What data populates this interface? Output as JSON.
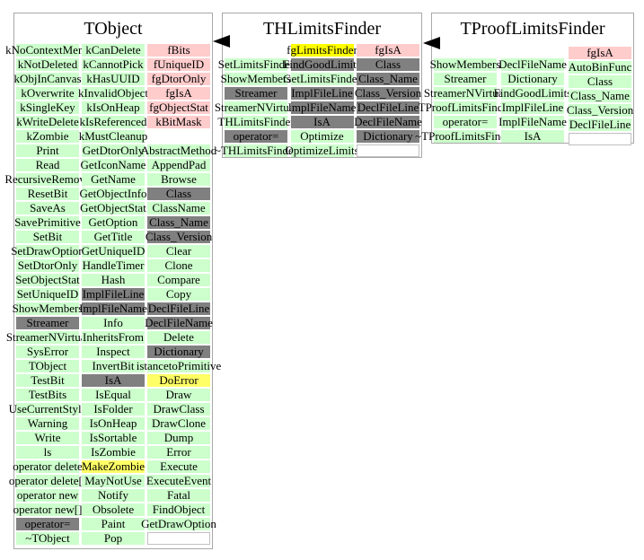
{
  "colors": {
    "green": "#ccffcc",
    "gray": "#808080",
    "pink": "#ffcccc",
    "yellow": "#ffff00",
    "lightyellow": "#ffff66"
  },
  "arrows": [
    {
      "from": "THLimitsFinder",
      "to": "TObject",
      "direction": "left"
    },
    {
      "from": "TProofLimitsFinder",
      "to": "THLimitsFinder",
      "direction": "left"
    }
  ],
  "classes": [
    {
      "title": "TObject",
      "columns": [
        [
          [
            "kNoContextMenu",
            "green"
          ],
          [
            "kNotDeleted",
            "green"
          ],
          [
            "kObjInCanvas",
            "green"
          ],
          [
            "kOverwrite",
            "green"
          ],
          [
            "kSingleKey",
            "green"
          ],
          [
            "kWriteDelete",
            "green"
          ],
          [
            "kZombie",
            "green"
          ],
          [
            "Print",
            "green"
          ],
          [
            "Read",
            "green"
          ],
          [
            "RecursiveRemove",
            "green"
          ],
          [
            "ResetBit",
            "green"
          ],
          [
            "SaveAs",
            "green"
          ],
          [
            "SavePrimitive",
            "green"
          ],
          [
            "SetBit",
            "green"
          ],
          [
            "SetDrawOption",
            "green"
          ],
          [
            "SetDtorOnly",
            "green"
          ],
          [
            "SetObjectStat",
            "green"
          ],
          [
            "SetUniqueID",
            "green"
          ],
          [
            "ShowMembers",
            "green"
          ],
          [
            "Streamer",
            "gray"
          ],
          [
            "StreamerNVirtual",
            "green"
          ],
          [
            "SysError",
            "green"
          ],
          [
            "TObject",
            "green"
          ],
          [
            "TestBit",
            "green"
          ],
          [
            "TestBits",
            "green"
          ],
          [
            "UseCurrentStyle",
            "green"
          ],
          [
            "Warning",
            "green"
          ],
          [
            "Write",
            "green"
          ],
          [
            "ls",
            "green"
          ],
          [
            "operator delete",
            "green"
          ],
          [
            "operator delete[]",
            "green"
          ],
          [
            "operator new",
            "green"
          ],
          [
            "operator new[]",
            "green"
          ],
          [
            "operator=",
            "gray"
          ],
          [
            "~TObject",
            "green"
          ]
        ],
        [
          [
            "kCanDelete",
            "green"
          ],
          [
            "kCannotPick",
            "green"
          ],
          [
            "kHasUUID",
            "green"
          ],
          [
            "kInvalidObject",
            "green"
          ],
          [
            "kIsOnHeap",
            "green"
          ],
          [
            "kIsReferenced",
            "green"
          ],
          [
            "kMustCleanup",
            "green"
          ],
          [
            "GetDtorOnly",
            "green"
          ],
          [
            "GetIconName",
            "green"
          ],
          [
            "GetName",
            "green"
          ],
          [
            "GetObjectInfo",
            "green"
          ],
          [
            "GetObjectStat",
            "green"
          ],
          [
            "GetOption",
            "green"
          ],
          [
            "GetTitle",
            "green"
          ],
          [
            "GetUniqueID",
            "green"
          ],
          [
            "HandleTimer",
            "green"
          ],
          [
            "Hash",
            "green"
          ],
          [
            "ImplFileLine",
            "gray"
          ],
          [
            "ImplFileName",
            "gray"
          ],
          [
            "Info",
            "green"
          ],
          [
            "InheritsFrom",
            "green"
          ],
          [
            "Inspect",
            "green"
          ],
          [
            "InvertBit",
            "green"
          ],
          [
            "IsA",
            "gray"
          ],
          [
            "IsEqual",
            "green"
          ],
          [
            "IsFolder",
            "green"
          ],
          [
            "IsOnHeap",
            "green"
          ],
          [
            "IsSortable",
            "green"
          ],
          [
            "IsZombie",
            "green"
          ],
          [
            "MakeZombie",
            "lightyellow"
          ],
          [
            "MayNotUse",
            "green"
          ],
          [
            "Notify",
            "green"
          ],
          [
            "Obsolete",
            "green"
          ],
          [
            "Paint",
            "green"
          ],
          [
            "Pop",
            "green"
          ]
        ],
        [
          [
            "fBits",
            "pink"
          ],
          [
            "fUniqueID",
            "pink"
          ],
          [
            "fgDtorOnly",
            "pink"
          ],
          [
            "fgIsA",
            "pink"
          ],
          [
            "fgObjectStat",
            "pink"
          ],
          [
            "kBitMask",
            "pink"
          ],
          [
            "",
            "blank"
          ],
          [
            "AbstractMethod",
            "green"
          ],
          [
            "AppendPad",
            "green"
          ],
          [
            "Browse",
            "green"
          ],
          [
            "Class",
            "gray"
          ],
          [
            "ClassName",
            "green"
          ],
          [
            "Class_Name",
            "gray"
          ],
          [
            "Class_Version",
            "gray"
          ],
          [
            "Clear",
            "green"
          ],
          [
            "Clone",
            "green"
          ],
          [
            "Compare",
            "green"
          ],
          [
            "Copy",
            "green"
          ],
          [
            "DeclFileLine",
            "gray"
          ],
          [
            "DeclFileName",
            "gray"
          ],
          [
            "Delete",
            "green"
          ],
          [
            "Dictionary",
            "gray"
          ],
          [
            "istancetoPrimitive",
            "green"
          ],
          [
            "DoError",
            "lightyellow"
          ],
          [
            "Draw",
            "green"
          ],
          [
            "DrawClass",
            "green"
          ],
          [
            "DrawClone",
            "green"
          ],
          [
            "Dump",
            "green"
          ],
          [
            "Error",
            "green"
          ],
          [
            "Execute",
            "green"
          ],
          [
            "ExecuteEvent",
            "green"
          ],
          [
            "Fatal",
            "green"
          ],
          [
            "FindObject",
            "green"
          ],
          [
            "GetDrawOption",
            "green"
          ],
          [
            "",
            "empty"
          ]
        ]
      ]
    },
    {
      "title": "THLimitsFinder",
      "columns": [
        [
          [
            "",
            "blank"
          ],
          [
            "SetLimitsFinder",
            "green"
          ],
          [
            "ShowMembers",
            "green"
          ],
          [
            "Streamer",
            "gray"
          ],
          [
            "StreamerNVirtual",
            "green"
          ],
          [
            "THLimitsFinder",
            "green"
          ],
          [
            "operator=",
            "gray"
          ],
          [
            "~THLimitsFinder",
            "green"
          ]
        ],
        [
          [
            "fgLimitsFinder",
            "yellow"
          ],
          [
            "FindGoodLimits",
            "gray"
          ],
          [
            "GetLimitsFinder",
            "green"
          ],
          [
            "ImplFileLine",
            "gray"
          ],
          [
            "ImplFileName",
            "gray"
          ],
          [
            "IsA",
            "gray"
          ],
          [
            "Optimize",
            "green"
          ],
          [
            "OptimizeLimits",
            "green"
          ]
        ],
        [
          [
            "fgIsA",
            "pink"
          ],
          [
            "Class",
            "gray"
          ],
          [
            "Class_Name",
            "gray"
          ],
          [
            "Class_Version",
            "gray"
          ],
          [
            "DeclFileLine",
            "gray"
          ],
          [
            "DeclFileName",
            "gray"
          ],
          [
            "Dictionary",
            "gray"
          ],
          [
            "",
            "empty"
          ]
        ]
      ]
    },
    {
      "title": "TProofLimitsFinder",
      "columns": [
        [
          [
            "",
            "blank"
          ],
          [
            "ShowMembers",
            "green"
          ],
          [
            "Streamer",
            "green"
          ],
          [
            "StreamerNVirtual",
            "green"
          ],
          [
            "TProofLimitsFinder",
            "green"
          ],
          [
            "operator=",
            "green"
          ],
          [
            "~TProofLimitsFinder",
            "green"
          ]
        ],
        [
          [
            "",
            "blank"
          ],
          [
            "DeclFileName",
            "green"
          ],
          [
            "Dictionary",
            "green"
          ],
          [
            "FindGoodLimits",
            "green"
          ],
          [
            "ImplFileLine",
            "green"
          ],
          [
            "ImplFileName",
            "green"
          ],
          [
            "IsA",
            "green"
          ]
        ],
        [
          [
            "fgIsA",
            "pink"
          ],
          [
            "AutoBinFunc",
            "green"
          ],
          [
            "Class",
            "green"
          ],
          [
            "Class_Name",
            "green"
          ],
          [
            "Class_Version",
            "green"
          ],
          [
            "DeclFileLine",
            "green"
          ],
          [
            "",
            "empty"
          ]
        ]
      ]
    }
  ]
}
